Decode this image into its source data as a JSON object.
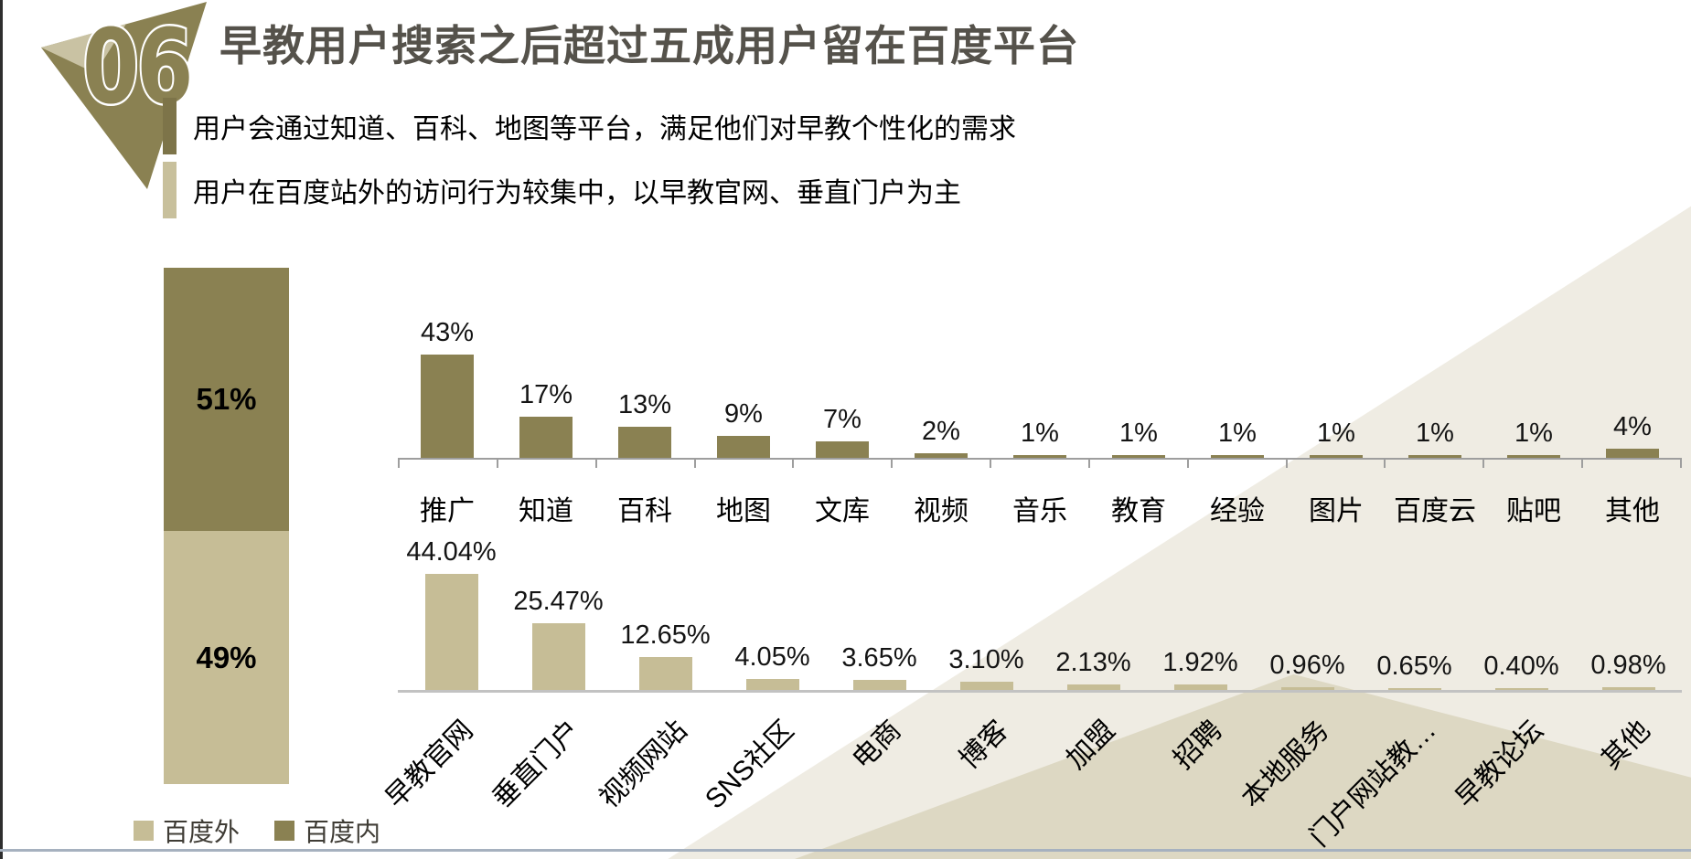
{
  "header": {
    "badge_number": "06",
    "title": "早教用户搜索之后超过五成用户留在百度平台",
    "bullets": [
      "用户会通过知道、百科、地图等平台，满足他们对早教个性化的需求",
      "用户在百度站外的访问行为较集中，以早教官网、垂直门户为主"
    ]
  },
  "colors": {
    "baidu_inside": "#8A8152",
    "baidu_outside": "#C6BD96",
    "title_text": "#55524B",
    "axis_gray": "#9E9E9E",
    "bg_triangle_light": "#EFECE3",
    "bg_triangle_mid": "#DDD8C3"
  },
  "chart_data": [
    {
      "type": "bar",
      "subtype": "stacked-column",
      "title": "",
      "unit": "%",
      "series": [
        {
          "name": "百度内",
          "value": 51,
          "label": "51%",
          "color": "#8A8152"
        },
        {
          "name": "百度外",
          "value": 49,
          "label": "49%",
          "color": "#C6BD96"
        }
      ]
    },
    {
      "type": "bar",
      "series_name": "百度内",
      "color": "#8A8152",
      "unit": "%",
      "categories": [
        "推广",
        "知道",
        "百科",
        "地图",
        "文库",
        "视频",
        "音乐",
        "教育",
        "经验",
        "图片",
        "百度云",
        "贴吧",
        "其他"
      ],
      "values": [
        43,
        17,
        13,
        9,
        7,
        2,
        1,
        1,
        1,
        1,
        1,
        1,
        4
      ],
      "labels": [
        "43%",
        "17%",
        "13%",
        "9%",
        "7%",
        "2%",
        "1%",
        "1%",
        "1%",
        "1%",
        "1%",
        "1%",
        "4%"
      ]
    },
    {
      "type": "bar",
      "series_name": "百度外",
      "color": "#C6BD96",
      "unit": "%",
      "categories": [
        "早教官网",
        "垂直门户",
        "视频网站",
        "SNS社区",
        "电商",
        "博客",
        "加盟",
        "招聘",
        "本地服务",
        "门户网站教…",
        "早教论坛",
        "其他"
      ],
      "values": [
        44.04,
        25.47,
        12.65,
        4.05,
        3.65,
        3.1,
        2.13,
        1.92,
        0.96,
        0.65,
        0.4,
        0.98
      ],
      "labels": [
        "44.04%",
        "25.47%",
        "12.65%",
        "4.05%",
        "3.65%",
        "3.10%",
        "2.13%",
        "1.92%",
        "0.96%",
        "0.65%",
        "0.40%",
        "0.98%"
      ]
    }
  ],
  "legend": {
    "items": [
      {
        "label": "百度外",
        "color": "#C6BD96"
      },
      {
        "label": "百度内",
        "color": "#8A8152"
      }
    ]
  }
}
